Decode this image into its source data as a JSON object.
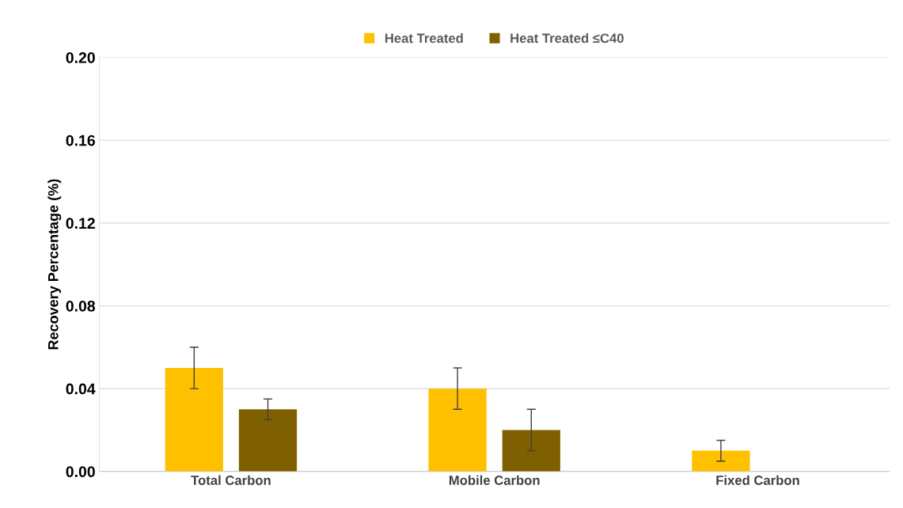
{
  "chart_data": {
    "type": "bar",
    "ylabel": "Recovery Percentage (%)",
    "categories": [
      "Total Carbon",
      "Mobile Carbon",
      "Fixed Carbon"
    ],
    "series": [
      {
        "name": "Heat Treated",
        "color": "#ffc000",
        "values": [
          0.05,
          0.04,
          0.01
        ],
        "errors": [
          0.01,
          0.01,
          0.005
        ]
      },
      {
        "name": "Heat Treated ≤C40",
        "color": "#7f6000",
        "values": [
          0.03,
          0.02,
          null
        ],
        "errors": [
          0.005,
          0.01,
          null
        ]
      }
    ],
    "ylim": [
      0,
      0.2
    ],
    "yticks": [
      {
        "value": 0,
        "label": "0.00"
      },
      {
        "value": 0.04,
        "label": "0.04"
      },
      {
        "value": 0.08,
        "label": "0.08"
      },
      {
        "value": 0.12,
        "label": "0.12"
      },
      {
        "value": 0.16,
        "label": "0.16"
      },
      {
        "value": 0.2,
        "label": "0.20"
      }
    ],
    "grid": "y",
    "legend": "top"
  }
}
